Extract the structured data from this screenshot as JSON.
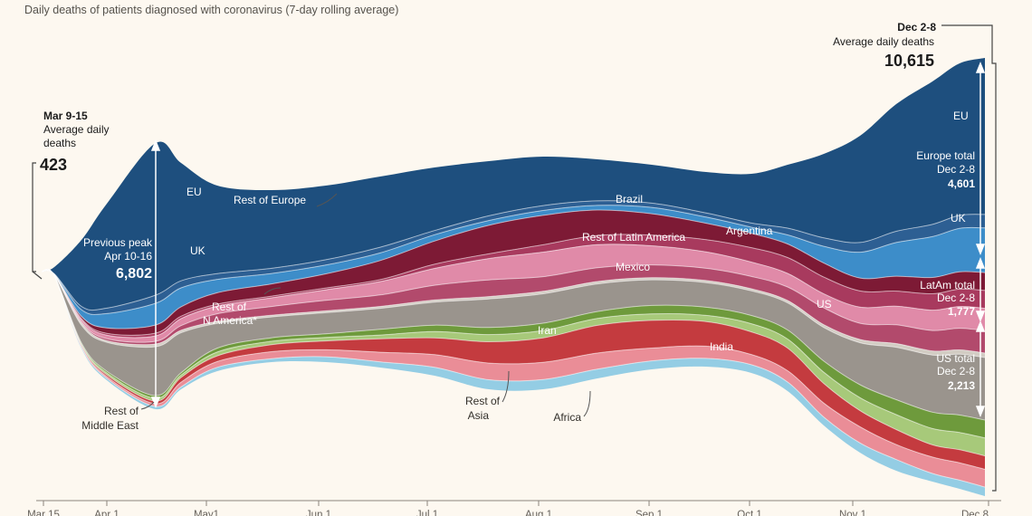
{
  "subtitle": "Daily deaths of patients diagnosed with coronavirus (7-day rolling average)",
  "chart_data": {
    "type": "area",
    "title": "Daily deaths of patients diagnosed with coronavirus (7-day rolling average)",
    "x_ticks": [
      "Mar 15",
      "Apr 1",
      "May1",
      "Jun 1",
      "Jul 1",
      "Aug 1",
      "Sep 1",
      "Oct 1",
      "Nov 1",
      "Dec 8"
    ],
    "series": [
      {
        "name": "EU",
        "color": "#1e4f7e"
      },
      {
        "name": "Rest of Europe",
        "color": "#2d5f93"
      },
      {
        "name": "UK",
        "color": "#3d8dc9"
      },
      {
        "name": "Brazil",
        "color": "#7d1a35"
      },
      {
        "name": "Argentina",
        "color": "#a83a5e"
      },
      {
        "name": "Rest of Latin America",
        "color": "#e08aa8"
      },
      {
        "name": "Mexico",
        "color": "#b24a6c"
      },
      {
        "name": "Rest of N America*",
        "color": "#d2ccc3"
      },
      {
        "name": "US",
        "color": "#9a948d"
      },
      {
        "name": "Iran",
        "color": "#6e9a3c"
      },
      {
        "name": "Rest of Middle East",
        "color": "#a7c97a"
      },
      {
        "name": "India",
        "color": "#c43b3f"
      },
      {
        "name": "Rest of Asia",
        "color": "#ea8d97"
      },
      {
        "name": "Africa",
        "color": "#94cde4"
      }
    ]
  },
  "annotations": {
    "start_date": "Mar 9-15",
    "start_line1": "Average daily",
    "start_line2": "deaths",
    "start_value": "423",
    "end_date": "Dec 2-8",
    "end_label": "Average daily deaths",
    "end_value": "10,615",
    "peak_line1": "Previous peak",
    "peak_line2": "Apr 10-16",
    "peak_value": "6,802",
    "europe_line1": "Europe total",
    "europe_line2": "Dec 2-8",
    "europe_value": "4,601",
    "latam_line1": "LatAm total",
    "latam_line2": "Dec 2-8",
    "latam_value": "1,777",
    "us_line1": "US total",
    "us_line2": "Dec 2-8",
    "us_value": "2,213"
  },
  "labels": {
    "eu_left": "EU",
    "rest_europe": "Rest of Europe",
    "uk_left": "UK",
    "rest_n_america_1": "Rest of",
    "rest_n_america_2": "N America*",
    "rest_middle_east_1": "Rest of",
    "rest_middle_east_2": "Middle East",
    "brazil": "Brazil",
    "rest_latam": "Rest of Latin America",
    "argentina": "Argentina",
    "mexico": "Mexico",
    "us": "US",
    "iran": "Iran",
    "india": "India",
    "rest_asia_1": "Rest of",
    "rest_asia_2": "Asia",
    "africa": "Africa",
    "eu_right": "EU",
    "uk_right": "UK"
  }
}
